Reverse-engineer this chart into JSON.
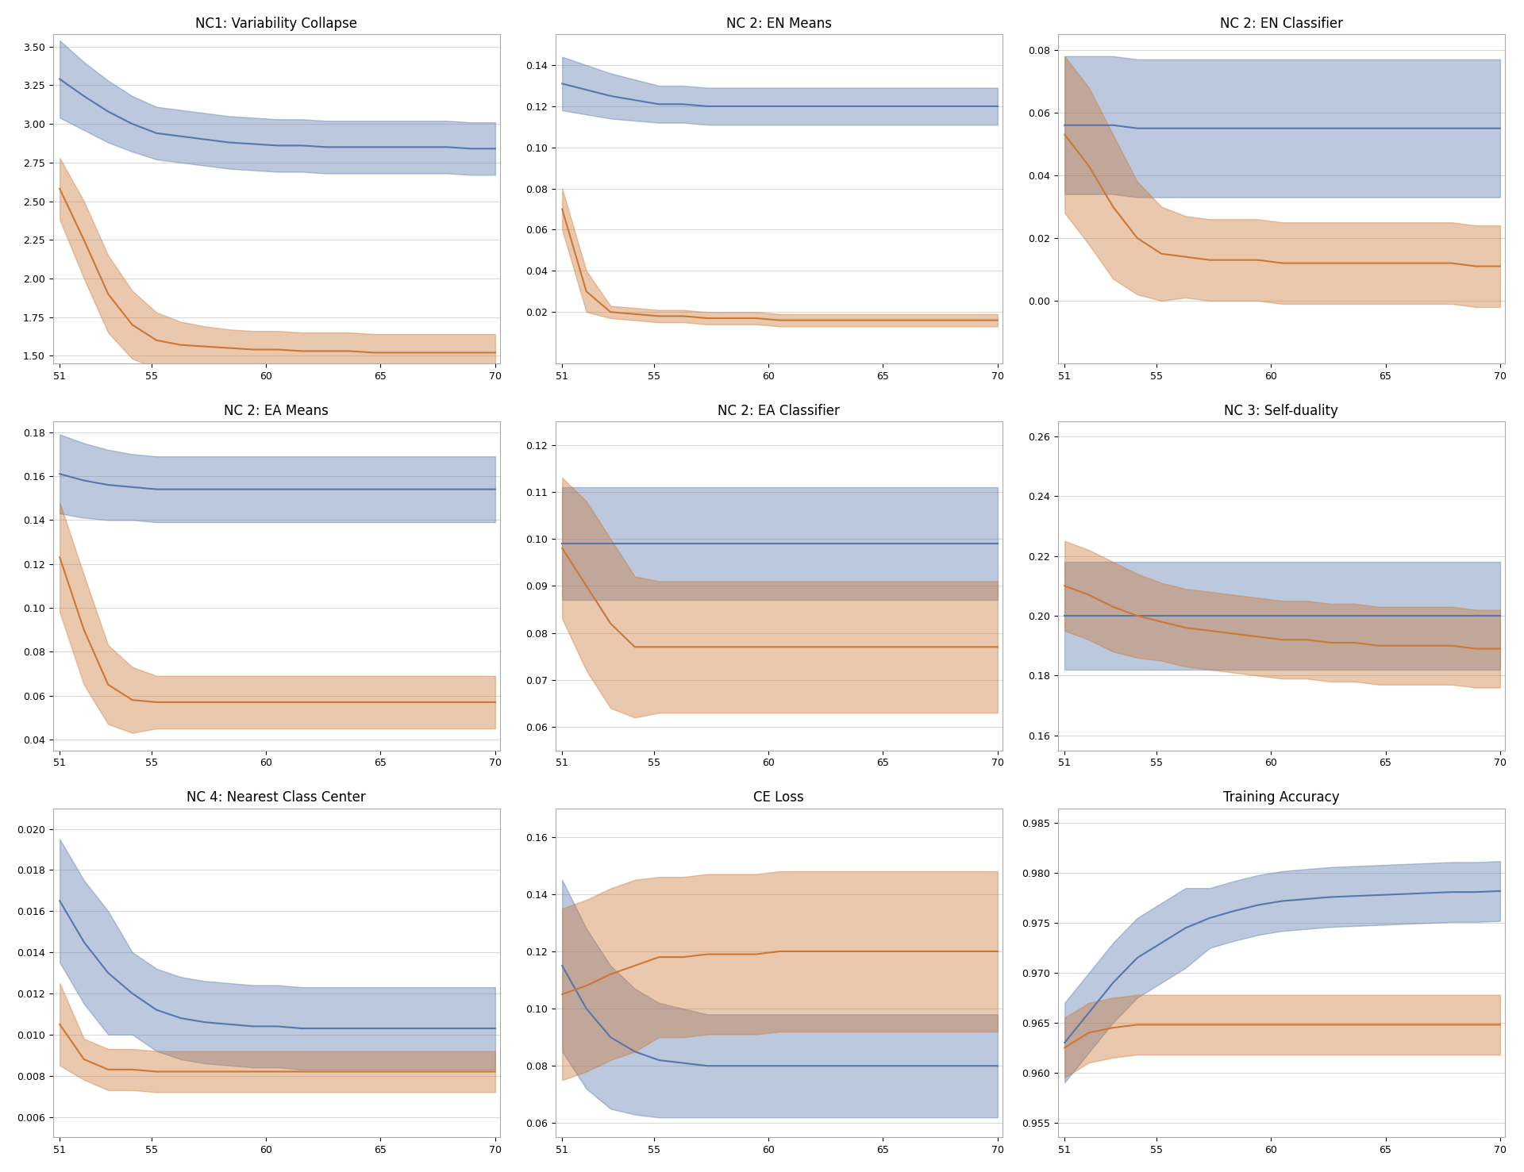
{
  "titles": [
    "NC1: Variability Collapse",
    "NC 2: EN Means",
    "NC 2: EN Classifier",
    "NC 2: EA Means",
    "NC 2: EA Classifier",
    "NC 3: Self-duality",
    "NC 4: Nearest Class Center",
    "CE Loss",
    "Training Accuracy"
  ],
  "x_start": 51,
  "x_end": 70,
  "blue_color": "#5577aa",
  "orange_color": "#cc7733",
  "blue_fill": "#aabbdd",
  "orange_fill": "#f0d8b0",
  "blue_fill_alpha": 0.4,
  "orange_fill_alpha": 0.4,
  "subplots": {
    "NC1: Variability Collapse": {
      "blue_mean": [
        3.29,
        3.18,
        3.08,
        3.0,
        2.94,
        2.92,
        2.9,
        2.88,
        2.87,
        2.86,
        2.86,
        2.85,
        2.85,
        2.85,
        2.85,
        2.85,
        2.85,
        2.84,
        2.84
      ],
      "blue_std": [
        0.25,
        0.22,
        0.2,
        0.18,
        0.17,
        0.17,
        0.17,
        0.17,
        0.17,
        0.17,
        0.17,
        0.17,
        0.17,
        0.17,
        0.17,
        0.17,
        0.17,
        0.17,
        0.17
      ],
      "orange_mean": [
        2.58,
        2.25,
        1.9,
        1.7,
        1.6,
        1.57,
        1.56,
        1.55,
        1.54,
        1.54,
        1.53,
        1.53,
        1.53,
        1.52,
        1.52,
        1.52,
        1.52,
        1.52,
        1.52
      ],
      "orange_std": [
        0.2,
        0.25,
        0.25,
        0.22,
        0.18,
        0.15,
        0.13,
        0.12,
        0.12,
        0.12,
        0.12,
        0.12,
        0.12,
        0.12,
        0.12,
        0.12,
        0.12,
        0.12,
        0.12
      ],
      "ylim": [
        1.45,
        3.58
      ],
      "yticks": [
        1.5,
        1.75,
        2.0,
        2.25,
        2.5,
        2.75,
        3.0,
        3.25,
        3.5
      ]
    },
    "NC 2: EN Means": {
      "blue_mean": [
        0.131,
        0.128,
        0.125,
        0.123,
        0.121,
        0.121,
        0.12,
        0.12,
        0.12,
        0.12,
        0.12,
        0.12,
        0.12,
        0.12,
        0.12,
        0.12,
        0.12,
        0.12,
        0.12
      ],
      "blue_std": [
        0.013,
        0.012,
        0.011,
        0.01,
        0.009,
        0.009,
        0.009,
        0.009,
        0.009,
        0.009,
        0.009,
        0.009,
        0.009,
        0.009,
        0.009,
        0.009,
        0.009,
        0.009,
        0.009
      ],
      "orange_mean": [
        0.07,
        0.03,
        0.02,
        0.019,
        0.018,
        0.018,
        0.017,
        0.017,
        0.017,
        0.016,
        0.016,
        0.016,
        0.016,
        0.016,
        0.016,
        0.016,
        0.016,
        0.016,
        0.016
      ],
      "orange_std": [
        0.01,
        0.01,
        0.003,
        0.003,
        0.003,
        0.003,
        0.003,
        0.003,
        0.003,
        0.003,
        0.003,
        0.003,
        0.003,
        0.003,
        0.003,
        0.003,
        0.003,
        0.003,
        0.003
      ],
      "ylim": [
        -0.005,
        0.155
      ],
      "yticks": [
        0.02,
        0.04,
        0.06,
        0.08,
        0.1,
        0.12,
        0.14
      ]
    },
    "NC 2: EN Classifier": {
      "blue_mean": [
        0.056,
        0.056,
        0.056,
        0.055,
        0.055,
        0.055,
        0.055,
        0.055,
        0.055,
        0.055,
        0.055,
        0.055,
        0.055,
        0.055,
        0.055,
        0.055,
        0.055,
        0.055,
        0.055
      ],
      "blue_std": [
        0.022,
        0.022,
        0.022,
        0.022,
        0.022,
        0.022,
        0.022,
        0.022,
        0.022,
        0.022,
        0.022,
        0.022,
        0.022,
        0.022,
        0.022,
        0.022,
        0.022,
        0.022,
        0.022
      ],
      "orange_mean": [
        0.053,
        0.043,
        0.03,
        0.02,
        0.015,
        0.014,
        0.013,
        0.013,
        0.013,
        0.012,
        0.012,
        0.012,
        0.012,
        0.012,
        0.012,
        0.012,
        0.012,
        0.011,
        0.011
      ],
      "orange_std": [
        0.025,
        0.025,
        0.023,
        0.018,
        0.015,
        0.013,
        0.013,
        0.013,
        0.013,
        0.013,
        0.013,
        0.013,
        0.013,
        0.013,
        0.013,
        0.013,
        0.013,
        0.013,
        0.013
      ],
      "ylim": [
        -0.02,
        0.085
      ],
      "yticks": [
        0.0,
        0.02,
        0.04,
        0.06,
        0.08
      ]
    },
    "NC 2: EA Means": {
      "blue_mean": [
        0.161,
        0.158,
        0.156,
        0.155,
        0.154,
        0.154,
        0.154,
        0.154,
        0.154,
        0.154,
        0.154,
        0.154,
        0.154,
        0.154,
        0.154,
        0.154,
        0.154,
        0.154,
        0.154
      ],
      "blue_std": [
        0.018,
        0.017,
        0.016,
        0.015,
        0.015,
        0.015,
        0.015,
        0.015,
        0.015,
        0.015,
        0.015,
        0.015,
        0.015,
        0.015,
        0.015,
        0.015,
        0.015,
        0.015,
        0.015
      ],
      "orange_mean": [
        0.123,
        0.09,
        0.065,
        0.058,
        0.057,
        0.057,
        0.057,
        0.057,
        0.057,
        0.057,
        0.057,
        0.057,
        0.057,
        0.057,
        0.057,
        0.057,
        0.057,
        0.057,
        0.057
      ],
      "orange_std": [
        0.025,
        0.025,
        0.018,
        0.015,
        0.012,
        0.012,
        0.012,
        0.012,
        0.012,
        0.012,
        0.012,
        0.012,
        0.012,
        0.012,
        0.012,
        0.012,
        0.012,
        0.012,
        0.012
      ],
      "ylim": [
        0.035,
        0.185
      ],
      "yticks": [
        0.04,
        0.06,
        0.08,
        0.1,
        0.12,
        0.14,
        0.16,
        0.18
      ]
    },
    "NC 2: EA Classifier": {
      "blue_mean": [
        0.099,
        0.099,
        0.099,
        0.099,
        0.099,
        0.099,
        0.099,
        0.099,
        0.099,
        0.099,
        0.099,
        0.099,
        0.099,
        0.099,
        0.099,
        0.099,
        0.099,
        0.099,
        0.099
      ],
      "blue_std": [
        0.012,
        0.012,
        0.012,
        0.012,
        0.012,
        0.012,
        0.012,
        0.012,
        0.012,
        0.012,
        0.012,
        0.012,
        0.012,
        0.012,
        0.012,
        0.012,
        0.012,
        0.012,
        0.012
      ],
      "orange_mean": [
        0.098,
        0.09,
        0.082,
        0.077,
        0.077,
        0.077,
        0.077,
        0.077,
        0.077,
        0.077,
        0.077,
        0.077,
        0.077,
        0.077,
        0.077,
        0.077,
        0.077,
        0.077,
        0.077
      ],
      "orange_std": [
        0.015,
        0.018,
        0.018,
        0.015,
        0.014,
        0.014,
        0.014,
        0.014,
        0.014,
        0.014,
        0.014,
        0.014,
        0.014,
        0.014,
        0.014,
        0.014,
        0.014,
        0.014,
        0.014
      ],
      "ylim": [
        0.055,
        0.125
      ],
      "yticks": [
        0.06,
        0.07,
        0.08,
        0.09,
        0.1,
        0.11,
        0.12
      ]
    },
    "NC 3: Self-duality": {
      "blue_mean": [
        0.2,
        0.2,
        0.2,
        0.2,
        0.2,
        0.2,
        0.2,
        0.2,
        0.2,
        0.2,
        0.2,
        0.2,
        0.2,
        0.2,
        0.2,
        0.2,
        0.2,
        0.2,
        0.2
      ],
      "blue_std": [
        0.018,
        0.018,
        0.018,
        0.018,
        0.018,
        0.018,
        0.018,
        0.018,
        0.018,
        0.018,
        0.018,
        0.018,
        0.018,
        0.018,
        0.018,
        0.018,
        0.018,
        0.018,
        0.018
      ],
      "orange_mean": [
        0.21,
        0.207,
        0.203,
        0.2,
        0.198,
        0.196,
        0.195,
        0.194,
        0.193,
        0.192,
        0.192,
        0.191,
        0.191,
        0.19,
        0.19,
        0.19,
        0.19,
        0.189,
        0.189
      ],
      "orange_std": [
        0.015,
        0.015,
        0.015,
        0.014,
        0.013,
        0.013,
        0.013,
        0.013,
        0.013,
        0.013,
        0.013,
        0.013,
        0.013,
        0.013,
        0.013,
        0.013,
        0.013,
        0.013,
        0.013
      ],
      "ylim": [
        0.155,
        0.265
      ],
      "yticks": [
        0.16,
        0.18,
        0.2,
        0.22,
        0.24,
        0.26
      ]
    },
    "NC 4: Nearest Class Center": {
      "blue_mean": [
        0.0165,
        0.0145,
        0.013,
        0.012,
        0.0112,
        0.0108,
        0.0106,
        0.0105,
        0.0104,
        0.0104,
        0.0103,
        0.0103,
        0.0103,
        0.0103,
        0.0103,
        0.0103,
        0.0103,
        0.0103,
        0.0103
      ],
      "blue_std": [
        0.003,
        0.003,
        0.003,
        0.002,
        0.002,
        0.002,
        0.002,
        0.002,
        0.002,
        0.002,
        0.002,
        0.002,
        0.002,
        0.002,
        0.002,
        0.002,
        0.002,
        0.002,
        0.002
      ],
      "orange_mean": [
        0.0105,
        0.0088,
        0.0083,
        0.0083,
        0.0082,
        0.0082,
        0.0082,
        0.0082,
        0.0082,
        0.0082,
        0.0082,
        0.0082,
        0.0082,
        0.0082,
        0.0082,
        0.0082,
        0.0082,
        0.0082,
        0.0082
      ],
      "orange_std": [
        0.002,
        0.001,
        0.001,
        0.001,
        0.001,
        0.001,
        0.001,
        0.001,
        0.001,
        0.001,
        0.001,
        0.001,
        0.001,
        0.001,
        0.001,
        0.001,
        0.001,
        0.001,
        0.001
      ],
      "ylim": [
        0.005,
        0.021
      ],
      "yticks": [
        0.006,
        0.008,
        0.01,
        0.012,
        0.014,
        0.016,
        0.018,
        0.02
      ]
    },
    "CE Loss": {
      "blue_mean": [
        0.115,
        0.1,
        0.09,
        0.085,
        0.082,
        0.081,
        0.08,
        0.08,
        0.08,
        0.08,
        0.08,
        0.08,
        0.08,
        0.08,
        0.08,
        0.08,
        0.08,
        0.08,
        0.08
      ],
      "blue_std": [
        0.03,
        0.028,
        0.025,
        0.022,
        0.02,
        0.019,
        0.018,
        0.018,
        0.018,
        0.018,
        0.018,
        0.018,
        0.018,
        0.018,
        0.018,
        0.018,
        0.018,
        0.018,
        0.018
      ],
      "orange_mean": [
        0.105,
        0.108,
        0.112,
        0.115,
        0.118,
        0.118,
        0.119,
        0.119,
        0.119,
        0.12,
        0.12,
        0.12,
        0.12,
        0.12,
        0.12,
        0.12,
        0.12,
        0.12,
        0.12
      ],
      "orange_std": [
        0.03,
        0.03,
        0.03,
        0.03,
        0.028,
        0.028,
        0.028,
        0.028,
        0.028,
        0.028,
        0.028,
        0.028,
        0.028,
        0.028,
        0.028,
        0.028,
        0.028,
        0.028,
        0.028
      ],
      "ylim": [
        0.055,
        0.17
      ],
      "yticks": [
        0.06,
        0.08,
        0.1,
        0.12,
        0.14,
        0.16
      ]
    },
    "Training Accuracy": {
      "blue_mean": [
        0.963,
        0.966,
        0.969,
        0.9715,
        0.973,
        0.9745,
        0.9755,
        0.9762,
        0.9768,
        0.9772,
        0.9774,
        0.9776,
        0.9777,
        0.9778,
        0.9779,
        0.978,
        0.9781,
        0.9781,
        0.9782
      ],
      "blue_std": [
        0.004,
        0.004,
        0.004,
        0.004,
        0.004,
        0.004,
        0.003,
        0.003,
        0.003,
        0.003,
        0.003,
        0.003,
        0.003,
        0.003,
        0.003,
        0.003,
        0.003,
        0.003,
        0.003
      ],
      "orange_mean": [
        0.9625,
        0.964,
        0.9645,
        0.9648,
        0.9648,
        0.9648,
        0.9648,
        0.9648,
        0.9648,
        0.9648,
        0.9648,
        0.9648,
        0.9648,
        0.9648,
        0.9648,
        0.9648,
        0.9648,
        0.9648,
        0.9648
      ],
      "orange_std": [
        0.003,
        0.003,
        0.003,
        0.003,
        0.003,
        0.003,
        0.003,
        0.003,
        0.003,
        0.003,
        0.003,
        0.003,
        0.003,
        0.003,
        0.003,
        0.003,
        0.003,
        0.003,
        0.003
      ],
      "ylim": [
        0.9535,
        0.9865
      ],
      "yticks": [
        0.955,
        0.96,
        0.965,
        0.97,
        0.975,
        0.98,
        0.985
      ]
    }
  },
  "xticks": [
    51,
    55,
    60,
    65,
    70
  ],
  "xlabel_fontsize": 10,
  "ylabel_fontsize": 10,
  "title_fontsize": 12,
  "tick_fontsize": 9,
  "background_color": "#ffffff",
  "grid_color": "#cccccc",
  "grid_alpha": 0.8
}
